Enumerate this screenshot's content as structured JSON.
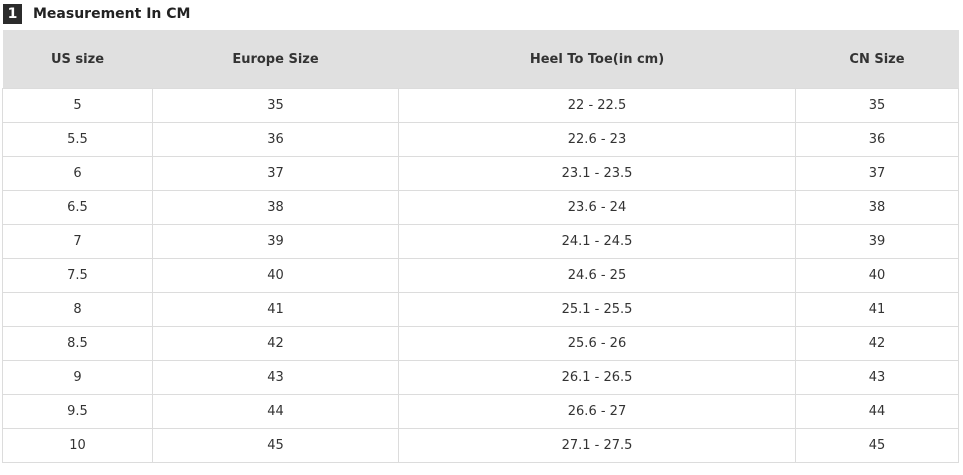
{
  "section": {
    "number": "1",
    "title": "Measurement In CM"
  },
  "table": {
    "headers": [
      "US size",
      "Europe Size",
      "Heel To Toe(in cm)",
      "CN Size"
    ],
    "rows": [
      [
        "5",
        "35",
        "22 - 22.5",
        "35"
      ],
      [
        "5.5",
        "36",
        "22.6 - 23",
        "36"
      ],
      [
        "6",
        "37",
        "23.1 - 23.5",
        "37"
      ],
      [
        "6.5",
        "38",
        "23.6 - 24",
        "38"
      ],
      [
        "7",
        "39",
        "24.1 - 24.5",
        "39"
      ],
      [
        "7.5",
        "40",
        "24.6 - 25",
        "40"
      ],
      [
        "8",
        "41",
        "25.1 - 25.5",
        "41"
      ],
      [
        "8.5",
        "42",
        "25.6 - 26",
        "42"
      ],
      [
        "9",
        "43",
        "26.1 - 26.5",
        "43"
      ],
      [
        "9.5",
        "44",
        "26.6 - 27",
        "44"
      ],
      [
        "10",
        "45",
        "27.1 - 27.5",
        "45"
      ]
    ]
  }
}
